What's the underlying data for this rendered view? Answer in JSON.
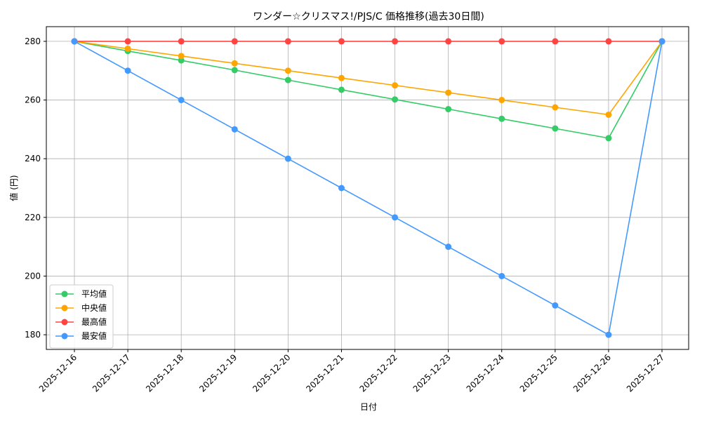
{
  "chart_data": {
    "type": "line",
    "title": "ワンダー☆クリスマス!/PJS/C 価格推移(過去30日間)",
    "xlabel": "日付",
    "ylabel": "値 (円)",
    "categories": [
      "2025-12-16",
      "2025-12-17",
      "2025-12-18",
      "2025-12-19",
      "2025-12-20",
      "2025-12-21",
      "2025-12-22",
      "2025-12-23",
      "2025-12-24",
      "2025-12-25",
      "2025-12-26",
      "2025-12-27"
    ],
    "ylim": [
      175,
      285
    ],
    "yticks": [
      180,
      200,
      220,
      240,
      260,
      280
    ],
    "grid": true,
    "legend_position": "lower-left",
    "series": [
      {
        "name": "平均値",
        "color": "#33cc66",
        "values": [
          280,
          276.7,
          273.5,
          270.2,
          266.8,
          263.5,
          260.2,
          256.9,
          253.6,
          250.3,
          247.0,
          280
        ]
      },
      {
        "name": "中央値",
        "color": "#ffa500",
        "values": [
          280,
          277.5,
          275.0,
          272.5,
          270.0,
          267.5,
          265.0,
          262.5,
          260.0,
          257.5,
          255.0,
          280
        ]
      },
      {
        "name": "最高値",
        "color": "#ff4444",
        "values": [
          280,
          280,
          280,
          280,
          280,
          280,
          280,
          280,
          280,
          280,
          280,
          280
        ]
      },
      {
        "name": "最安値",
        "color": "#4499ff",
        "values": [
          280,
          270,
          260,
          250,
          240,
          230,
          220,
          210,
          200,
          190,
          180,
          280
        ]
      }
    ]
  }
}
